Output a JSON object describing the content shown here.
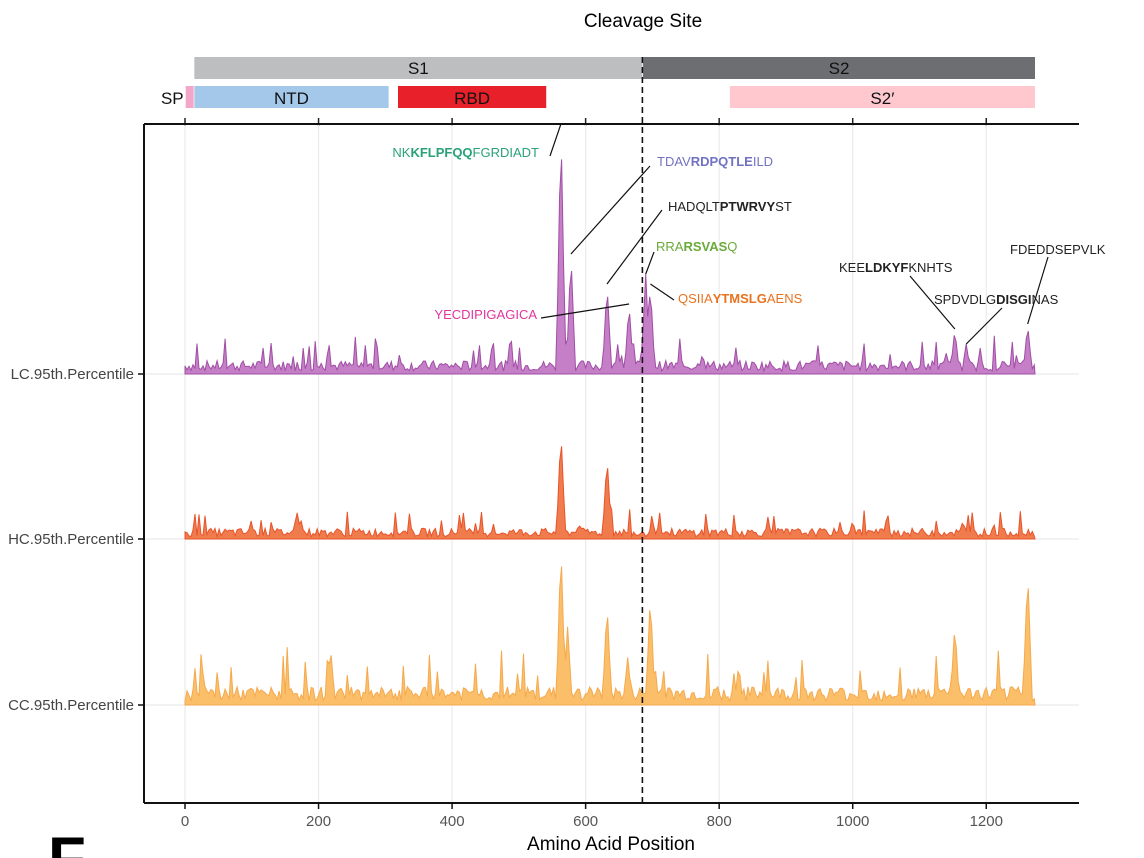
{
  "chart_data": {
    "type": "area",
    "title": "Cleavage Site",
    "xlabel": "Amino Acid Position",
    "xlim": [
      0,
      1273
    ],
    "xticks": [
      0,
      200,
      400,
      600,
      800,
      1000,
      1200
    ],
    "xtick_labels": [
      "0",
      "200",
      "400",
      "600",
      "800",
      "1000",
      "1200"
    ],
    "cleavage_site": 685,
    "grid": true,
    "panel_label": "F",
    "domains_top": [
      {
        "label": "S1",
        "start": 14,
        "end": 685,
        "color": "#bcbec0"
      },
      {
        "label": "S2",
        "start": 686,
        "end": 1273,
        "color": "#6d6e71"
      }
    ],
    "domains_sub": [
      {
        "label": "SP",
        "start": 1,
        "end": 13,
        "color": "#f4a6c8"
      },
      {
        "label": "NTD",
        "start": 14,
        "end": 305,
        "color": "#a4c8ea"
      },
      {
        "label": "RBD",
        "start": 319,
        "end": 541,
        "color": "#e8202a"
      },
      {
        "label": "S2′",
        "start": 816,
        "end": 1273,
        "color": "#ffc8cf"
      }
    ],
    "series": [
      {
        "name": "LC.95th.Percentile",
        "color": "#a14ea5",
        "fill": "#c47fc7",
        "baseline": 0.03,
        "peaks": [
          [
            563,
            1.0
          ],
          [
            578,
            0.48
          ],
          [
            632,
            0.36
          ],
          [
            665,
            0.28
          ],
          [
            690,
            0.4
          ],
          [
            697,
            0.36
          ],
          [
            775,
            0.08
          ],
          [
            1153,
            0.18
          ],
          [
            1170,
            0.12
          ],
          [
            1262,
            0.2
          ]
        ]
      },
      {
        "name": "HC.95th.Percentile",
        "color": "#e8542a",
        "fill": "#f07b4d",
        "baseline": 0.04,
        "peaks": [
          [
            563,
            0.72
          ],
          [
            632,
            0.55
          ],
          [
            173,
            0.14
          ],
          [
            412,
            0.1
          ],
          [
            1000,
            0.12
          ],
          [
            1165,
            0.12
          ],
          [
            700,
            0.12
          ],
          [
            590,
            0.1
          ]
        ]
      },
      {
        "name": "CC.95th.Percentile",
        "color": "#f5a94d",
        "fill": "#fbbf6a",
        "baseline": 0.06,
        "peaks": [
          [
            563,
            0.95
          ],
          [
            573,
            0.46
          ],
          [
            632,
            0.6
          ],
          [
            697,
            0.65
          ],
          [
            663,
            0.28
          ],
          [
            218,
            0.34
          ],
          [
            1153,
            0.48
          ],
          [
            1262,
            0.8
          ],
          [
            295,
            0.12
          ]
        ]
      }
    ],
    "annotations": [
      {
        "parts": [
          [
            "NK",
            false
          ],
          [
            "KFLPFQQ",
            true
          ],
          [
            "FGRDIADT",
            false
          ]
        ],
        "color": "#2aa179",
        "x": 563,
        "series": 0
      },
      {
        "parts": [
          [
            "TDAV",
            false
          ],
          [
            "RDPQTLE",
            true
          ],
          [
            "ILD",
            false
          ]
        ],
        "color": "#7272c4",
        "x": 578,
        "series": 0
      },
      {
        "parts": [
          [
            "HADQLT",
            false
          ],
          [
            "PTWRVY",
            true
          ],
          [
            "ST",
            false
          ]
        ],
        "color": "#222222",
        "x": 632,
        "series": 0
      },
      {
        "parts": [
          [
            "RRA",
            false
          ],
          [
            "RSVAS",
            true
          ],
          [
            "Q",
            false
          ]
        ],
        "color": "#6aaa3a",
        "x": 690,
        "series": 0
      },
      {
        "parts": [
          [
            "QSIIA",
            false
          ],
          [
            "YTMSLG",
            true
          ],
          [
            "AENS",
            false
          ]
        ],
        "color": "#e8731f",
        "x": 697,
        "series": 0
      },
      {
        "parts": [
          [
            "YECDIPIGAGICA",
            false
          ]
        ],
        "color": "#e0359d",
        "x": 665,
        "series": 0
      },
      {
        "parts": [
          [
            "KEE",
            false
          ],
          [
            "LDKYF",
            true
          ],
          [
            "KNHTS",
            false
          ]
        ],
        "color": "#222222",
        "x": 1153,
        "series": 0
      },
      {
        "parts": [
          [
            "SPDVDLG",
            false
          ],
          [
            "DISGI",
            true
          ],
          [
            "NAS",
            false
          ]
        ],
        "color": "#222222",
        "x": 1170,
        "series": 0
      },
      {
        "parts": [
          [
            "FDEDDSEPVLK",
            false
          ]
        ],
        "color": "#222222",
        "x": 1262,
        "series": 0
      }
    ]
  }
}
